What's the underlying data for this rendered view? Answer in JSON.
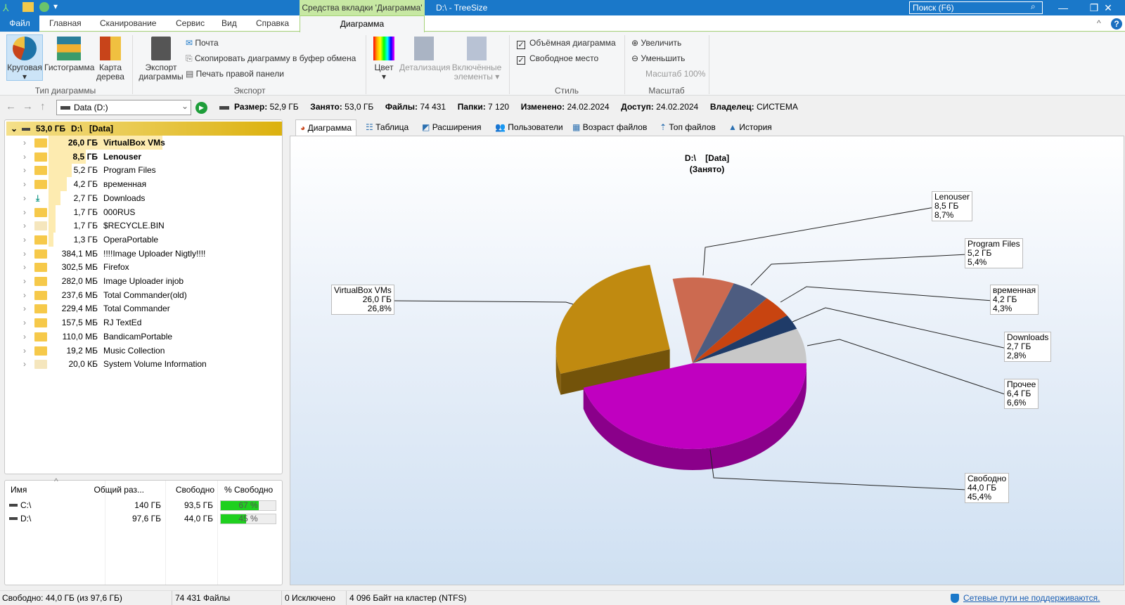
{
  "window": {
    "title": "D:\\ - TreeSize",
    "context_tab": "Средства вкладки 'Диаграмма'",
    "search_placeholder": "Поиск (F6)",
    "minimize": "—",
    "maximize": "❐",
    "close": "✕"
  },
  "ribbon_tabs": [
    "Файл",
    "Главная",
    "Сканирование",
    "Сервис",
    "Вид",
    "Справка",
    "Диаграмма"
  ],
  "ribbon": {
    "chart_type": {
      "label": "Тип диаграммы",
      "pie": "Круговая",
      "histogram": "Гистограмма",
      "treemap": "Карта дерева"
    },
    "export": {
      "label": "Экспорт",
      "export_chart": "Экспорт диаграммы",
      "mail": "Почта",
      "copy": "Скопировать диаграмму в буфер обмена",
      "print": "Печать правой панели"
    },
    "color": "Цвет",
    "detail": "Детализация",
    "included": "Включённые элементы",
    "style": {
      "label": "Стиль",
      "three_d": "Объёмная диаграмма",
      "three_d_checked": true,
      "free_space": "Свободное место",
      "free_space_checked": true
    },
    "zoom": {
      "label": "Масштаб",
      "zoom_in": "Увеличить",
      "zoom_out": "Уменьшить",
      "level": "Масштаб 100%"
    }
  },
  "address": {
    "drive": "Data (D:)",
    "size": "Размер:",
    "size_v": "52,9 ГБ",
    "used": "Занято:",
    "used_v": "53,0 ГБ",
    "files": "Файлы:",
    "files_v": "74 431",
    "folders": "Папки:",
    "folders_v": "7 120",
    "modified": "Изменено:",
    "modified_v": "24.02.2024",
    "access": "Доступ:",
    "access_v": "24.02.2024",
    "owner": "Владелец:",
    "owner_v": "СИСТЕМА"
  },
  "tree": {
    "root": {
      "size": "53,0 ГБ",
      "name": "D:\\   [Data]"
    },
    "items": [
      {
        "size": "26,0 ГБ",
        "name": "VirtualBox VMs",
        "pct": 49
      },
      {
        "size": "8,5 ГБ",
        "name": "Lenouser",
        "pct": 16
      },
      {
        "size": "5,2 ГБ",
        "name": "Program Files",
        "pct": 10
      },
      {
        "size": "4,2 ГБ",
        "name": "временная",
        "pct": 8
      },
      {
        "size": "2,7 ГБ",
        "name": "Downloads",
        "pct": 5
      },
      {
        "size": "1,7 ГБ",
        "name": "000RUS",
        "pct": 3
      },
      {
        "size": "1,7 ГБ",
        "name": "$RECYCLE.BIN",
        "pct": 3
      },
      {
        "size": "1,3 ГБ",
        "name": "OperaPortable",
        "pct": 2
      },
      {
        "size": "384,1 МБ",
        "name": "!!!!Image Uploader Nigtly!!!!",
        "pct": 0
      },
      {
        "size": "302,5 МБ",
        "name": "Firefox",
        "pct": 0
      },
      {
        "size": "282,0 МБ",
        "name": "Image Uploader injob",
        "pct": 0
      },
      {
        "size": "237,6 МБ",
        "name": "Total Commander(old)",
        "pct": 0
      },
      {
        "size": "229,4 МБ",
        "name": "Total Commander",
        "pct": 0
      },
      {
        "size": "157,5 МБ",
        "name": "RJ TextEd",
        "pct": 0
      },
      {
        "size": "110,0 МБ",
        "name": "BandicamPortable",
        "pct": 0
      },
      {
        "size": "19,2 МБ",
        "name": "Music Collection",
        "pct": 0
      },
      {
        "size": "20,0 КБ",
        "name": "System Volume Information",
        "pct": 0
      }
    ]
  },
  "drives": {
    "headers": [
      "Имя",
      "Общий раз...",
      "Свободно",
      "% Свободно"
    ],
    "rows": [
      {
        "name": "C:\\",
        "total": "140 ГБ",
        "free": "93,5 ГБ",
        "pct_label": "67 %",
        "pct": 67
      },
      {
        "name": "D:\\",
        "total": "97,6 ГБ",
        "free": "44,0 ГБ",
        "pct_label": "45 %",
        "pct": 45
      }
    ]
  },
  "chart_tabs": [
    "Диаграмма",
    "Таблица",
    "Расширения",
    "Пользователи",
    "Возраст файлов",
    "Топ файлов",
    "История"
  ],
  "chart_data": {
    "type": "pie",
    "title": "D:\\    [Data]",
    "subtitle": "(Занято)",
    "three_d": true,
    "slices": [
      {
        "name": "Свободно",
        "size": "44,0 ГБ",
        "percent": 45.4,
        "pct_label": "45,4%",
        "color": "#c000c0"
      },
      {
        "name": "VirtualBox VMs",
        "size": "26,0 ГБ",
        "percent": 26.8,
        "pct_label": "26,8%",
        "color": "#c08a10",
        "exploded": true
      },
      {
        "name": "Lenouser",
        "size": "8,5 ГБ",
        "percent": 8.7,
        "pct_label": "8,7%",
        "color": "#cc6a50"
      },
      {
        "name": "Program Files",
        "size": "5,2 ГБ",
        "percent": 5.4,
        "pct_label": "5,4%",
        "color": "#4d5c80"
      },
      {
        "name": "временная",
        "size": "4,2 ГБ",
        "percent": 4.3,
        "pct_label": "4,3%",
        "color": "#c84410"
      },
      {
        "name": "Downloads",
        "size": "2,7 ГБ",
        "percent": 2.8,
        "pct_label": "2,8%",
        "color": "#1f3b68"
      },
      {
        "name": "Прочее",
        "size": "6,4 ГБ",
        "percent": 6.6,
        "pct_label": "6,6%",
        "color": "#c8c8c8"
      }
    ]
  },
  "status": {
    "free": "Свободно: 44,0 ГБ  (из 97,6 ГБ)",
    "files": "74 431 Файлы",
    "excluded": "0 Исключено",
    "cluster": "4 096 Байт на кластер (NTFS)",
    "network": "Сетевые пути не поддерживаются."
  }
}
